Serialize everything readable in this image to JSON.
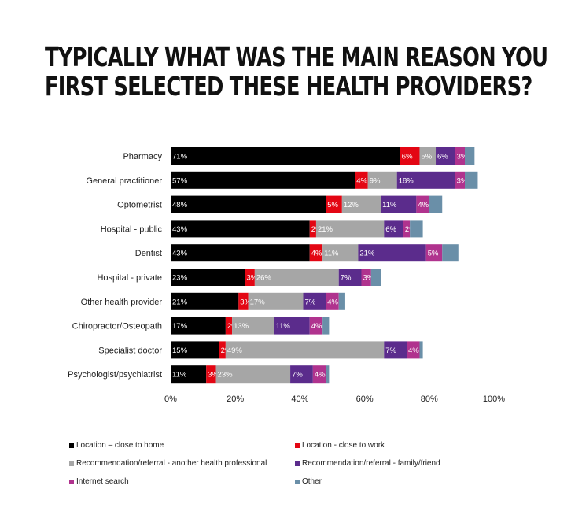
{
  "title_lines": [
    "TYPICALLY WHAT WAS THE MAIN REASON YOU",
    "FIRST SELECTED THESE HEALTH PROVIDERS?"
  ],
  "chart_data": {
    "type": "bar",
    "orientation": "horizontal",
    "stacked": true,
    "title": "TYPICALLY WHAT WAS THE MAIN REASON YOU FIRST SELECTED THESE HEALTH PROVIDERS?",
    "categories": [
      "Pharmacy",
      "General practitioner",
      "Optometrist",
      "Hospital - public",
      "Dentist",
      "Hospital - private",
      "Other health provider",
      "Chiropractor/Osteopath",
      "Specialist doctor",
      "Psychologist/psychiatrist"
    ],
    "series": [
      {
        "name": "Location – close to home",
        "color": "#000000",
        "values": [
          71,
          57,
          48,
          43,
          43,
          23,
          21,
          17,
          15,
          11
        ]
      },
      {
        "name": "Location - close to work",
        "color": "#e30613",
        "values": [
          6,
          4,
          5,
          2,
          4,
          3,
          3,
          2,
          2,
          3
        ]
      },
      {
        "name": "Recommendation/referral - another health professional",
        "color": "#a6a6a6",
        "values": [
          5,
          9,
          12,
          21,
          11,
          26,
          17,
          13,
          49,
          23
        ]
      },
      {
        "name": "Recommendation/referral - family/friend",
        "color": "#5b2c8c",
        "values": [
          6,
          18,
          11,
          6,
          21,
          7,
          7,
          11,
          7,
          7
        ]
      },
      {
        "name": "Internet search",
        "color": "#b0338e",
        "values": [
          3,
          3,
          4,
          2,
          5,
          3,
          4,
          4,
          4,
          4
        ]
      },
      {
        "name": "Other",
        "color": "#6a8fa8",
        "values": [
          3,
          4,
          4,
          4,
          5,
          3,
          2,
          2,
          1,
          1
        ]
      }
    ],
    "value_labels_shown": [
      [
        "71%",
        "6%",
        "5%",
        "6%",
        "3%",
        ""
      ],
      [
        "57%",
        "4%",
        "9%",
        "18%",
        "3%",
        ""
      ],
      [
        "48%",
        "5%",
        "12%",
        "11%",
        "4%",
        ""
      ],
      [
        "43%",
        "2%",
        "21%",
        "6%",
        "2%",
        ""
      ],
      [
        "43%",
        "4%",
        "11%",
        "21%",
        "5%",
        ""
      ],
      [
        "23%",
        "3%",
        "26%",
        "7%",
        "3%",
        ""
      ],
      [
        "21%",
        "3%",
        "17%",
        "7%",
        "4%",
        ""
      ],
      [
        "17%",
        "2%",
        "13%",
        "11%",
        "4%",
        ""
      ],
      [
        "15%",
        "2%",
        "49%",
        "7%",
        "4%",
        ""
      ],
      [
        "11%",
        "3%",
        "23%",
        "7%",
        "4%",
        ""
      ]
    ],
    "xlim": [
      0,
      100
    ],
    "xticks": [
      "0%",
      "20%",
      "40%",
      "60%",
      "80%",
      "100%"
    ],
    "xlabel": "",
    "ylabel": "",
    "grid": false,
    "legend_position": "bottom"
  }
}
